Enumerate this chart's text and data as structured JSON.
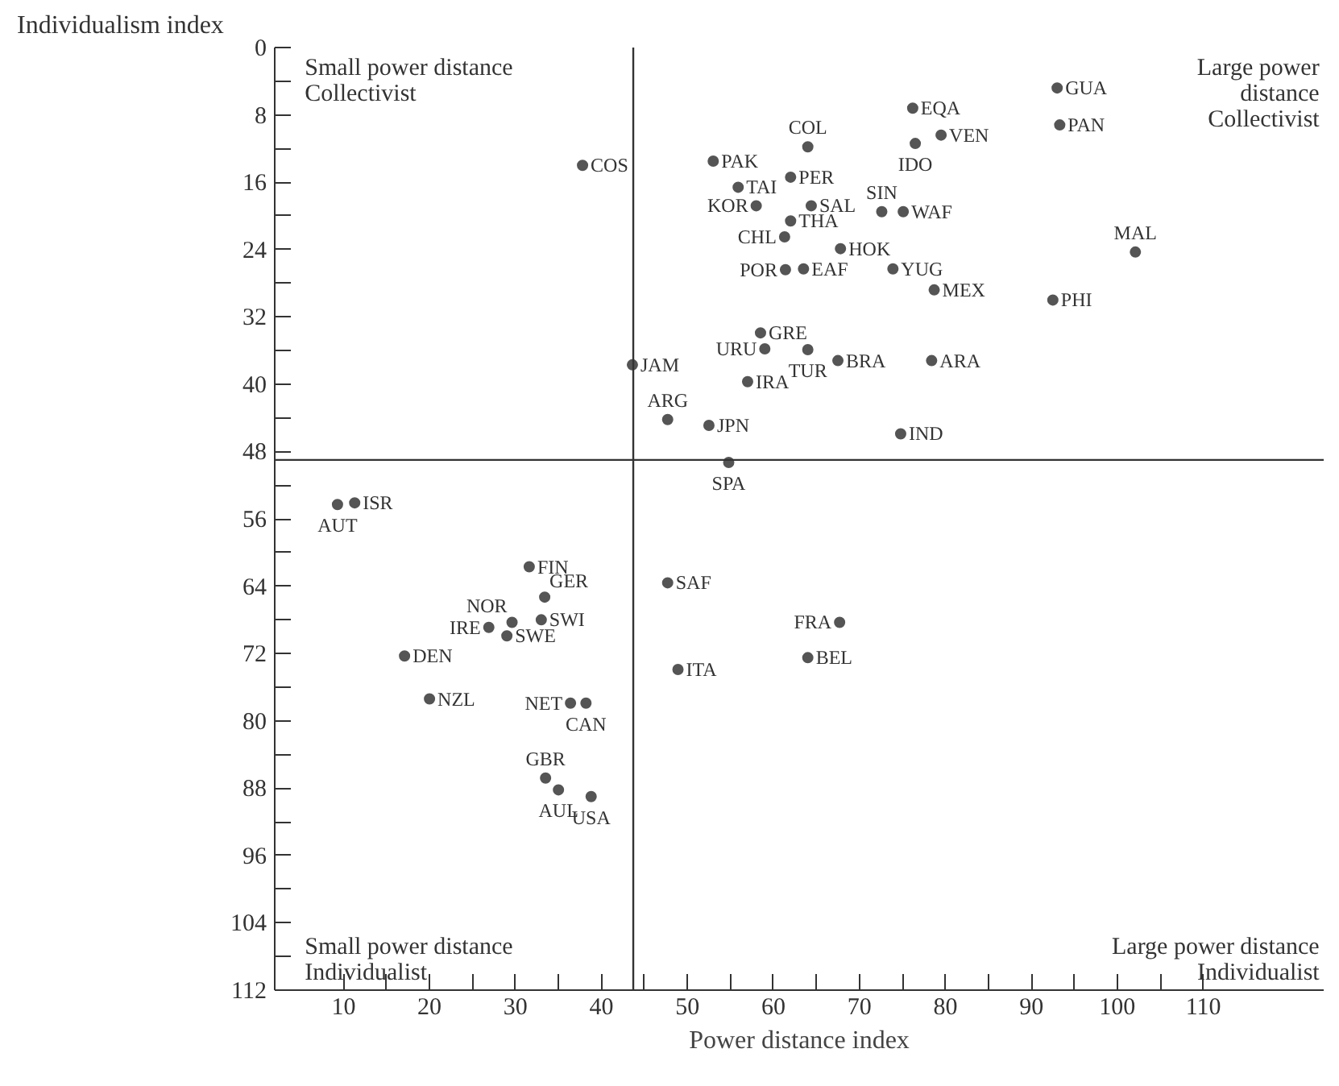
{
  "chart_data": {
    "type": "scatter",
    "xlabel": "Power distance index",
    "ylabel": "Individualism index",
    "xlim": [
      2,
      124
    ],
    "ylim": [
      112,
      0
    ],
    "xticks": [
      10,
      {
        "value": 15,
        "label": null
      },
      20,
      {
        "value": 25,
        "label": null
      },
      30,
      {
        "value": 35,
        "label": null
      },
      40,
      {
        "value": 45,
        "label": null
      },
      50,
      {
        "value": 55,
        "label": null
      },
      60,
      {
        "value": 65,
        "label": null
      },
      70,
      {
        "value": 75,
        "label": null
      },
      80,
      {
        "value": 85,
        "label": null
      },
      90,
      {
        "value": 95,
        "label": null
      },
      100,
      {
        "value": 105,
        "label": null
      },
      110
    ],
    "yticks": [
      0,
      {
        "value": 4,
        "label": null
      },
      8,
      {
        "value": 12,
        "label": null
      },
      16,
      {
        "value": 20,
        "label": null
      },
      24,
      {
        "value": 28,
        "label": null
      },
      32,
      {
        "value": 36,
        "label": null
      },
      40,
      {
        "value": 44,
        "label": null
      },
      48,
      {
        "value": 52,
        "label": null
      },
      56,
      {
        "value": 60,
        "label": null
      },
      64,
      {
        "value": 68,
        "label": null
      },
      72,
      {
        "value": 76,
        "label": null
      },
      80,
      {
        "value": 84,
        "label": null
      },
      88,
      {
        "value": 92,
        "label": null
      },
      96,
      {
        "value": 100,
        "label": null
      },
      104,
      {
        "value": 108,
        "label": null
      },
      112
    ],
    "grid": false,
    "marker": "circle",
    "ref_lines": [
      {
        "axis": "x",
        "value": 43.7,
        "color": "#333333"
      },
      {
        "axis": "y",
        "value": 49,
        "color": "#333333"
      }
    ],
    "series": [
      {
        "color": "#555555",
        "x": [
          37.8,
          93.0,
          93.3,
          76.2,
          79.5,
          64.0,
          76.5,
          53.0,
          62.0,
          55.9,
          64.4,
          72.6,
          75.1,
          58.0,
          62.0,
          61.3,
          67.8,
          61.4,
          63.5,
          73.9,
          78.7,
          92.5,
          102.1,
          58.5,
          59.0,
          64.0,
          67.5,
          78.4,
          43.6,
          57.0,
          47.7,
          52.5,
          74.8,
          54.8,
          9.3,
          11.3,
          31.6,
          33.4,
          29.6,
          33.0,
          26.9,
          29.0,
          17.1,
          47.7,
          67.7,
          64.0,
          48.9,
          20.0,
          36.4,
          38.2,
          33.5,
          35.0,
          38.8
        ],
        "values": [
          14.0,
          4.8,
          9.2,
          7.2,
          10.4,
          11.8,
          11.4,
          13.5,
          15.4,
          16.6,
          18.8,
          19.5,
          19.5,
          18.8,
          20.6,
          22.5,
          23.9,
          26.4,
          26.3,
          26.3,
          28.8,
          30.0,
          24.3,
          33.9,
          35.8,
          35.9,
          37.2,
          37.2,
          37.7,
          39.7,
          44.2,
          44.9,
          45.9,
          49.3,
          54.3,
          54.1,
          61.7,
          65.3,
          68.3,
          68.0,
          68.9,
          69.9,
          72.3,
          63.6,
          68.3,
          72.5,
          73.9,
          77.4,
          77.9,
          77.9,
          86.8,
          88.2,
          89.0
        ]
      }
    ],
    "annotations": [
      "Small power distance\nCollectivist",
      "Large power\ndistance\nCollectivist",
      "Small power distance\nIndividualist",
      "Large power distance\nIndividualist",
      {
        "text": "COS",
        "x": 37.8,
        "y": 14.0
      },
      {
        "text": "GUA",
        "x": 93.0,
        "y": 4.8
      },
      {
        "text": "PAN",
        "x": 93.3,
        "y": 9.2
      },
      {
        "text": "EQA",
        "x": 76.2,
        "y": 7.2
      },
      {
        "text": "VEN",
        "x": 79.5,
        "y": 10.4
      },
      {
        "text": "COL",
        "x": 64.0,
        "y": 11.8
      },
      {
        "text": "IDO",
        "x": 76.5,
        "y": 11.4
      },
      {
        "text": "PAK",
        "x": 53.0,
        "y": 13.5
      },
      {
        "text": "PER",
        "x": 62.0,
        "y": 15.4
      },
      {
        "text": "TAI",
        "x": 55.9,
        "y": 16.6
      },
      {
        "text": "SAL",
        "x": 64.4,
        "y": 18.8
      },
      {
        "text": "SIN",
        "x": 72.6,
        "y": 19.5
      },
      {
        "text": "WAF",
        "x": 75.1,
        "y": 19.5
      },
      {
        "text": "KOR",
        "x": 58.0,
        "y": 18.8
      },
      {
        "text": "THA",
        "x": 62.0,
        "y": 20.6
      },
      {
        "text": "CHL",
        "x": 61.3,
        "y": 22.5
      },
      {
        "text": "HOK",
        "x": 67.8,
        "y": 23.9
      },
      {
        "text": "POR",
        "x": 61.4,
        "y": 26.4
      },
      {
        "text": "EAF",
        "x": 63.5,
        "y": 26.3
      },
      {
        "text": "YUG",
        "x": 73.9,
        "y": 26.3
      },
      {
        "text": "MEX",
        "x": 78.7,
        "y": 28.8
      },
      {
        "text": "PHI",
        "x": 92.5,
        "y": 30.0
      },
      {
        "text": "MAL",
        "x": 102.1,
        "y": 24.3
      },
      {
        "text": "GRE",
        "x": 58.5,
        "y": 33.9
      },
      {
        "text": "URU",
        "x": 59.0,
        "y": 35.8
      },
      {
        "text": "TUR",
        "x": 64.0,
        "y": 35.9
      },
      {
        "text": "BRA",
        "x": 67.5,
        "y": 37.2
      },
      {
        "text": "ARA",
        "x": 78.4,
        "y": 37.2
      },
      {
        "text": "JAM",
        "x": 43.6,
        "y": 37.7
      },
      {
        "text": "IRA",
        "x": 57.0,
        "y": 39.7
      },
      {
        "text": "ARG",
        "x": 47.7,
        "y": 44.2
      },
      {
        "text": "JPN",
        "x": 52.5,
        "y": 44.9
      },
      {
        "text": "IND",
        "x": 74.8,
        "y": 45.9
      },
      {
        "text": "SPA",
        "x": 54.8,
        "y": 49.3
      },
      {
        "text": "AUT",
        "x": 9.3,
        "y": 54.3
      },
      {
        "text": "ISR",
        "x": 11.3,
        "y": 54.1
      },
      {
        "text": "FIN",
        "x": 31.6,
        "y": 61.7
      },
      {
        "text": "GER",
        "x": 33.4,
        "y": 65.3
      },
      {
        "text": "NOR",
        "x": 29.6,
        "y": 68.3
      },
      {
        "text": "SWI",
        "x": 33.0,
        "y": 68.0
      },
      {
        "text": "IRE",
        "x": 26.9,
        "y": 68.9
      },
      {
        "text": "SWE",
        "x": 29.0,
        "y": 69.9
      },
      {
        "text": "DEN",
        "x": 17.1,
        "y": 72.3
      },
      {
        "text": "SAF",
        "x": 47.7,
        "y": 63.6
      },
      {
        "text": "FRA",
        "x": 67.7,
        "y": 68.3
      },
      {
        "text": "BEL",
        "x": 64.0,
        "y": 72.5
      },
      {
        "text": "ITA",
        "x": 48.9,
        "y": 73.9
      },
      {
        "text": "NZL",
        "x": 20.0,
        "y": 77.4
      },
      {
        "text": "NET",
        "x": 36.4,
        "y": 77.9
      },
      {
        "text": "CAN",
        "x": 38.2,
        "y": 77.9
      },
      {
        "text": "GBR",
        "x": 33.5,
        "y": 86.8
      },
      {
        "text": "AUL",
        "x": 35.0,
        "y": 88.2
      },
      {
        "text": "USA",
        "x": 38.8,
        "y": 89.0
      }
    ]
  }
}
